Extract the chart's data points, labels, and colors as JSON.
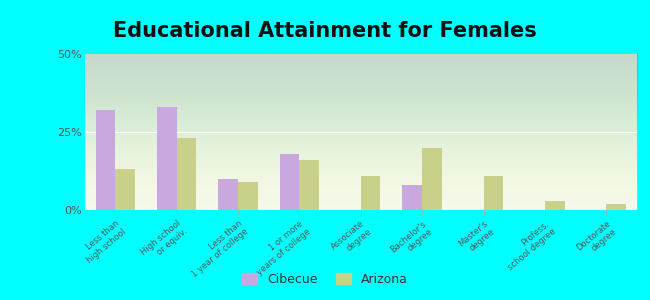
{
  "title": "Educational Attainment for Females",
  "categories": [
    "Less than\nhigh school",
    "High school\nor equiv.",
    "Less than\n1 year of college",
    "1 or more\nyears of college",
    "Associate\ndegree",
    "Bachelor's\ndegree",
    "Master's\ndegree",
    "Profess.\nschool degree",
    "Doctorate\ndegree"
  ],
  "cibecue": [
    32,
    33,
    10,
    18,
    0,
    8,
    0,
    0,
    0
  ],
  "arizona": [
    13,
    23,
    9,
    16,
    11,
    20,
    11,
    3,
    2
  ],
  "cibecue_color": "#c9a8e0",
  "arizona_color": "#c8d08a",
  "background_color": "#00ffff",
  "ylim": [
    0,
    50
  ],
  "yticks": [
    0,
    25,
    50
  ],
  "ytick_labels": [
    "0%",
    "25%",
    "50%"
  ],
  "title_fontsize": 15,
  "legend_labels": [
    "Cibecue",
    "Arizona"
  ],
  "bar_width": 0.32
}
